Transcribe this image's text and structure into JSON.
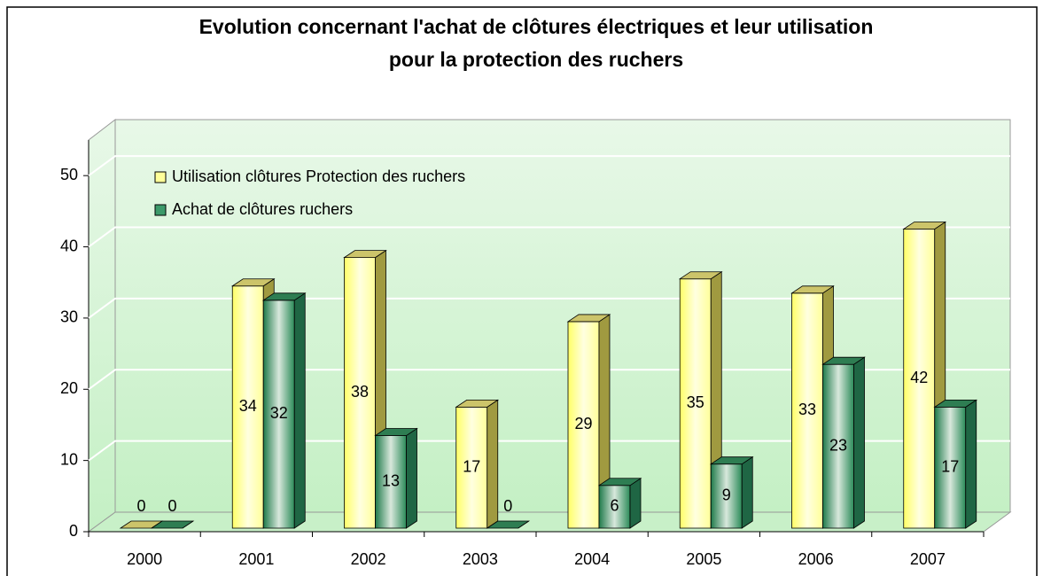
{
  "chart_data": {
    "type": "bar",
    "title": [
      "Evolution concernant l'achat de clôtures électriques et leur utilisation",
      "pour la protection des ruchers"
    ],
    "categories": [
      "2000",
      "2001",
      "2002",
      "2003",
      "2004",
      "2005",
      "2006",
      "2007"
    ],
    "series": [
      {
        "name": "Utilisation clôtures Protection des ruchers",
        "color": "#ffff99",
        "values": [
          0,
          34,
          38,
          17,
          29,
          35,
          33,
          42
        ]
      },
      {
        "name": "Achat de clôtures ruchers",
        "color": "#339966",
        "values": [
          0,
          32,
          13,
          0,
          6,
          9,
          23,
          17
        ]
      }
    ],
    "ylim": [
      0,
      55
    ],
    "yticks": [
      0,
      10,
      20,
      30,
      40,
      50
    ],
    "grid": true,
    "legend": "top-left"
  }
}
